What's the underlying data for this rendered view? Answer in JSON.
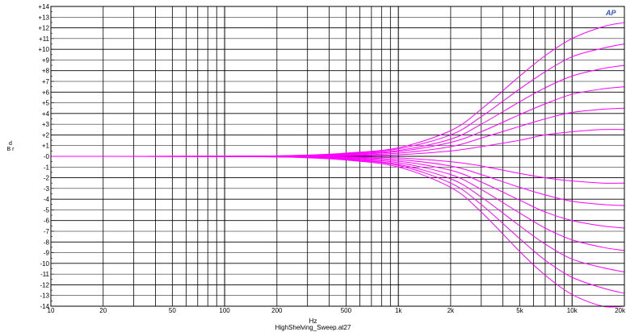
{
  "chart_data": {
    "type": "line",
    "title": "",
    "caption": "HighShelving_Sweep.at27",
    "xlabel": "Hz",
    "ylabel": "d B r",
    "xscale": "log",
    "xlim": [
      10,
      20000
    ],
    "ylim": [
      -14,
      14
    ],
    "grid": true,
    "x_ticks": [
      10,
      20,
      50,
      100,
      200,
      500,
      1000,
      2000,
      5000,
      10000,
      20000
    ],
    "x_tick_labels": [
      "10",
      "20",
      "50",
      "100",
      "200",
      "500",
      "1k",
      "2k",
      "5k",
      "10k",
      "20k"
    ],
    "y_ticks": [
      14,
      13,
      12,
      11,
      10,
      9,
      8,
      7,
      6,
      5,
      4,
      3,
      2,
      1,
      0,
      -1,
      -2,
      -3,
      -4,
      -5,
      -6,
      -7,
      -8,
      -9,
      -10,
      -11,
      -12,
      -13,
      -14
    ],
    "y_tick_labels": [
      "+14",
      "+13",
      "+12",
      "+11",
      "+10",
      "+9",
      "+8",
      "+7",
      "+6",
      "+5",
      "+4",
      "+3",
      "+2",
      "+1",
      "-0",
      "-1",
      "-2",
      "-3",
      "-4",
      "-5",
      "-6",
      "-7",
      "-8",
      "-9",
      "-10",
      "-11",
      "-12",
      "-13",
      "-14"
    ],
    "logo": "AP",
    "line_color": "#ff00ff",
    "x": [
      10,
      100,
      200,
      300,
      500,
      1000,
      2000,
      3000,
      5000,
      7000,
      10000,
      15000,
      20000
    ],
    "series": [
      {
        "values": [
          0,
          0.01,
          0.05,
          0.12,
          0.3,
          0.8,
          2.4,
          4.4,
          7.5,
          9.4,
          11.0,
          12.1,
          12.5
        ]
      },
      {
        "values": [
          0,
          0.01,
          0.04,
          0.1,
          0.25,
          0.7,
          2.0,
          3.7,
          6.3,
          7.9,
          9.3,
          10.1,
          10.5
        ]
      },
      {
        "values": [
          0,
          0.01,
          0.03,
          0.08,
          0.2,
          0.55,
          1.6,
          3.0,
          5.1,
          6.4,
          7.5,
          8.2,
          8.5
        ]
      },
      {
        "values": [
          0,
          0.01,
          0.02,
          0.06,
          0.15,
          0.45,
          1.3,
          2.3,
          3.9,
          4.9,
          5.8,
          6.3,
          6.5
        ]
      },
      {
        "values": [
          0,
          0.0,
          0.02,
          0.04,
          0.1,
          0.3,
          0.9,
          1.7,
          2.8,
          3.5,
          4.1,
          4.4,
          4.5
        ]
      },
      {
        "values": [
          0,
          0.0,
          0.01,
          0.02,
          0.05,
          0.15,
          0.5,
          0.9,
          1.5,
          2.0,
          2.3,
          2.5,
          2.5
        ]
      },
      {
        "values": [
          0,
          0.0,
          -0.01,
          -0.02,
          -0.05,
          -0.15,
          -0.5,
          -0.9,
          -1.6,
          -2.0,
          -2.3,
          -2.5,
          -2.5
        ]
      },
      {
        "values": [
          0,
          0.0,
          -0.02,
          -0.04,
          -0.1,
          -0.3,
          -0.9,
          -1.7,
          -2.9,
          -3.6,
          -4.2,
          -4.5,
          -4.6
        ]
      },
      {
        "values": [
          0,
          -0.01,
          -0.02,
          -0.06,
          -0.15,
          -0.45,
          -1.3,
          -2.4,
          -4.1,
          -5.2,
          -6.0,
          -6.5,
          -6.7
        ]
      },
      {
        "values": [
          0,
          -0.01,
          -0.03,
          -0.08,
          -0.2,
          -0.6,
          -1.7,
          -3.1,
          -5.3,
          -6.7,
          -7.8,
          -8.5,
          -8.8
        ]
      },
      {
        "values": [
          0,
          -0.01,
          -0.04,
          -0.1,
          -0.25,
          -0.75,
          -2.1,
          -3.8,
          -6.5,
          -8.2,
          -9.6,
          -10.4,
          -10.8
        ]
      },
      {
        "values": [
          0,
          -0.01,
          -0.05,
          -0.12,
          -0.3,
          -0.85,
          -2.5,
          -4.5,
          -7.7,
          -9.7,
          -11.3,
          -12.3,
          -12.8
        ]
      },
      {
        "values": [
          0,
          -0.02,
          -0.06,
          -0.14,
          -0.35,
          -1.0,
          -2.9,
          -5.2,
          -8.9,
          -11.1,
          -12.9,
          -14.0,
          -14.0
        ]
      }
    ]
  }
}
